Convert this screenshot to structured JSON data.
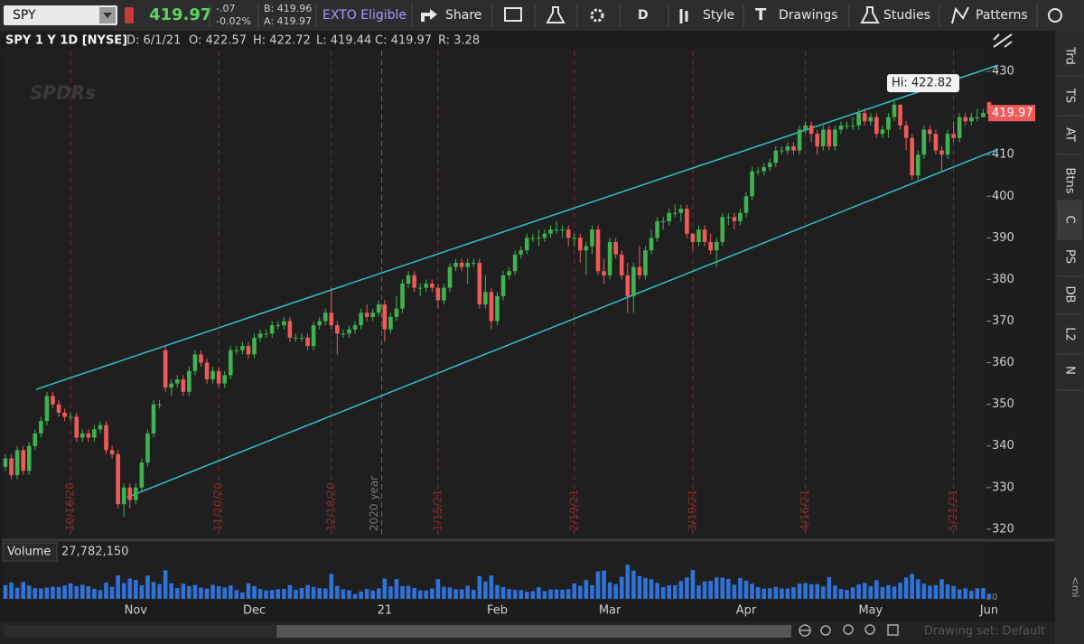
{
  "toolbar": {
    "symbol": "SPY",
    "last": "419.97",
    "change": "-.07",
    "change_pct": "-0.02%",
    "bid": "B: 419.96",
    "ask": "A: 419.97",
    "exto": "EXTO Eligible",
    "share": "Share",
    "aggregation": "D",
    "style": "Style",
    "drawings": "Drawings",
    "studies": "Studies",
    "patterns": "Patterns"
  },
  "info": {
    "title": "SPY 1 Y 1D [NYSE]",
    "date": "D: 6/1/21",
    "open": "O: 422.57",
    "high": "H: 422.72",
    "low": "L: 419.44",
    "close": "C: 419.97",
    "range": "R: 3.28"
  },
  "sidebar": [
    "Trd",
    "TS",
    "AT",
    "Btns",
    "C",
    "PS",
    "DB",
    "L2",
    "N"
  ],
  "footer": {
    "drawing_set": "Drawing set: Default",
    "collapsed": "<mi"
  },
  "chart_data": {
    "type": "candlestick",
    "watermark": "SPDRs",
    "up_color": "#3fb34f",
    "down_color": "#f05a5a",
    "open": [
      335,
      337,
      333,
      339,
      334,
      340,
      343,
      346,
      352,
      350,
      348,
      347,
      347,
      342,
      343,
      342,
      344,
      345,
      339,
      338,
      326,
      330,
      327,
      330,
      336,
      343,
      350,
      363,
      354,
      355,
      356,
      353,
      358,
      362,
      360,
      356,
      358,
      355,
      357,
      363,
      363,
      364,
      362,
      366,
      367,
      367,
      369,
      369,
      370,
      366,
      366,
      366,
      364,
      369,
      370,
      372,
      369,
      367,
      367,
      368,
      369,
      372,
      371,
      372,
      374,
      368,
      371,
      373,
      379,
      381,
      378,
      378,
      379,
      378,
      375,
      378,
      383,
      384,
      383,
      384,
      384,
      374,
      377,
      370,
      376,
      381,
      382,
      386,
      387,
      390,
      390,
      390,
      391,
      392,
      392,
      392,
      390,
      390,
      387,
      388,
      392,
      382,
      381,
      389,
      386,
      381,
      376,
      383,
      381,
      387,
      390,
      394,
      394,
      396,
      396,
      397,
      391,
      389,
      392,
      389,
      387,
      389,
      395,
      395,
      394,
      396,
      400,
      406,
      406,
      407,
      408,
      411,
      411,
      412,
      411,
      416,
      417,
      415,
      412,
      416,
      412,
      416,
      417,
      417,
      417,
      420,
      418,
      419,
      415,
      416,
      419,
      422,
      417,
      414,
      405,
      410,
      416,
      415,
      411,
      410,
      415,
      414,
      419,
      418,
      419,
      419,
      422.57
    ],
    "high": [
      338,
      338,
      340,
      340,
      341,
      344,
      347,
      353,
      353,
      351,
      349,
      348,
      348,
      344,
      344,
      345,
      346,
      346,
      340,
      339,
      331,
      331,
      331,
      337,
      344,
      351,
      351,
      364,
      356,
      357,
      357,
      359,
      363,
      363,
      361,
      359,
      359,
      358,
      364,
      364,
      365,
      365,
      367,
      368,
      368,
      370,
      370,
      371,
      371,
      367,
      367,
      367,
      370,
      371,
      373,
      378,
      370,
      368,
      369,
      370,
      373,
      374,
      373,
      375,
      375,
      372,
      376,
      380,
      382,
      382,
      379,
      380,
      380,
      379,
      379,
      384,
      385,
      385,
      385,
      385,
      385,
      381,
      378,
      377,
      382,
      383,
      387,
      388,
      391,
      391,
      392,
      392,
      393,
      394,
      393,
      393,
      391,
      391,
      389,
      393,
      393,
      385,
      390,
      390,
      387,
      384,
      384,
      388,
      388,
      392,
      395,
      395,
      397,
      398,
      398,
      398,
      391,
      393,
      393,
      391,
      390,
      396,
      396,
      396,
      397,
      401,
      407,
      407,
      408,
      409,
      412,
      412,
      413,
      413,
      417,
      418,
      418,
      416,
      417,
      417,
      417,
      418,
      418,
      419,
      421,
      421,
      420,
      420,
      417,
      420,
      422.82,
      422,
      418,
      415,
      411,
      417,
      417,
      416,
      412,
      416,
      418,
      420,
      420,
      420,
      421,
      421,
      422.72
    ],
    "low": [
      334,
      332,
      332,
      333,
      333,
      339,
      342,
      345,
      349,
      347,
      346,
      346,
      341,
      341,
      341,
      341,
      343,
      338,
      337,
      325,
      323,
      325,
      326,
      329,
      335,
      342,
      349,
      353,
      352,
      354,
      352,
      352,
      357,
      359,
      355,
      355,
      354,
      354,
      356,
      362,
      362,
      361,
      361,
      365,
      366,
      366,
      368,
      368,
      365,
      365,
      365,
      363,
      363,
      368,
      369,
      368,
      362,
      366,
      366,
      367,
      368,
      370,
      370,
      371,
      365,
      367,
      370,
      372,
      378,
      377,
      376,
      377,
      377,
      373,
      374,
      377,
      382,
      382,
      379,
      383,
      373,
      373,
      368,
      369,
      375,
      380,
      381,
      385,
      386,
      389,
      388,
      389,
      390,
      391,
      390,
      388,
      388,
      384,
      381,
      386,
      381,
      379,
      380,
      385,
      380,
      372,
      372,
      380,
      380,
      386,
      389,
      392,
      393,
      395,
      394,
      390,
      387,
      388,
      388,
      386,
      383,
      388,
      393,
      392,
      393,
      395,
      399,
      405,
      405,
      406,
      407,
      410,
      410,
      410,
      410,
      415,
      413,
      410,
      411,
      411,
      411,
      415,
      416,
      416,
      416,
      417,
      417,
      414,
      414,
      414,
      418,
      416,
      411,
      404,
      404,
      409,
      413,
      410,
      406,
      409,
      413,
      413,
      417,
      417,
      418,
      419,
      419.44
    ],
    "close": [
      337,
      333,
      339,
      334,
      340,
      343,
      346,
      352,
      350,
      348,
      347,
      347,
      342,
      343,
      342,
      344,
      345,
      339,
      338,
      326,
      330,
      327,
      330,
      336,
      343,
      350,
      350,
      354,
      355,
      356,
      353,
      358,
      362,
      360,
      356,
      358,
      355,
      357,
      363,
      363,
      364,
      362,
      366,
      367,
      367,
      369,
      369,
      370,
      366,
      366,
      366,
      364,
      369,
      370,
      372,
      369,
      367,
      367,
      368,
      369,
      372,
      371,
      372,
      374,
      368,
      371,
      373,
      379,
      381,
      378,
      378,
      379,
      378,
      375,
      378,
      383,
      384,
      383,
      384,
      384,
      374,
      377,
      370,
      376,
      381,
      382,
      386,
      387,
      390,
      390,
      390,
      391,
      392,
      392,
      392,
      390,
      390,
      387,
      388,
      392,
      382,
      381,
      389,
      386,
      381,
      376,
      383,
      381,
      387,
      390,
      394,
      394,
      396,
      396,
      397,
      391,
      389,
      392,
      389,
      387,
      389,
      395,
      395,
      394,
      396,
      400,
      406,
      406,
      407,
      408,
      411,
      411,
      412,
      411,
      416,
      417,
      415,
      412,
      416,
      412,
      416,
      417,
      417,
      417,
      420,
      418,
      419,
      415,
      416,
      419,
      422,
      417,
      414,
      405,
      410,
      416,
      415,
      411,
      410,
      415,
      414,
      419,
      418,
      419,
      419,
      420,
      419.97
    ],
    "ylim": [
      317.8,
      435
    ],
    "yticks": [
      320,
      330,
      340,
      350,
      360,
      370,
      380,
      390,
      400,
      410,
      420,
      430
    ],
    "last_price_label": "419.97",
    "high_annotation": "Hi: 422.82",
    "date_markers": [
      "10/16/20",
      "11/20/20",
      "12/18/20",
      "1/15/21",
      "2/19/21",
      "3/19/21",
      "4/16/21",
      "5/21/21"
    ],
    "year_marker": "2020 year",
    "month_labels": [
      "Nov",
      "Dec",
      "21",
      "Feb",
      "Mar",
      "Apr",
      "May",
      "Jun"
    ],
    "trendlines": [
      {
        "color": "#2fc3c9",
        "start": [
          5.2,
          353.6
        ],
        "end": [
          167.5,
          431.5
        ]
      },
      {
        "color": "#2fc3c9",
        "start": [
          20.5,
          327.6
        ],
        "end": [
          167.5,
          411.3
        ]
      }
    ],
    "volume": {
      "title": "Volume",
      "last_label": "27,782,150",
      "color": "#2f72d8",
      "ylim": [
        0,
        200000000
      ],
      "yticks": [
        0
      ],
      "values": [
        74000000,
        89000000,
        60000000,
        92000000,
        72000000,
        58000000,
        56000000,
        61000000,
        65000000,
        65000000,
        72000000,
        84000000,
        68000000,
        76000000,
        68000000,
        54000000,
        48000000,
        88000000,
        65000000,
        127000000,
        86000000,
        110000000,
        102000000,
        73000000,
        126000000,
        91000000,
        80000000,
        154000000,
        84000000,
        58000000,
        82000000,
        69000000,
        75000000,
        61000000,
        55000000,
        76000000,
        69000000,
        62000000,
        72000000,
        47000000,
        34000000,
        84000000,
        69000000,
        53000000,
        46000000,
        48000000,
        52000000,
        53000000,
        74000000,
        49000000,
        58000000,
        75000000,
        64000000,
        58000000,
        56000000,
        135000000,
        70000000,
        51000000,
        46000000,
        26000000,
        40000000,
        53000000,
        45000000,
        57000000,
        110000000,
        67000000,
        107000000,
        69000000,
        71000000,
        59000000,
        46000000,
        45000000,
        56000000,
        107000000,
        65000000,
        61000000,
        52000000,
        52000000,
        71000000,
        49000000,
        123000000,
        94000000,
        126000000,
        75000000,
        64000000,
        52000000,
        48000000,
        48000000,
        38000000,
        41000000,
        63000000,
        42000000,
        50000000,
        50000000,
        49000000,
        53000000,
        83000000,
        71000000,
        101000000,
        74000000,
        148000000,
        153000000,
        89000000,
        79000000,
        119000000,
        184000000,
        153000000,
        123000000,
        113000000,
        107000000,
        86000000,
        64000000,
        73000000,
        73000000,
        97000000,
        116000000,
        156000000,
        73000000,
        94000000,
        97000000,
        116000000,
        114000000,
        108000000,
        76000000,
        112000000,
        99000000,
        82000000,
        63000000,
        55000000,
        57000000,
        64000000,
        56000000,
        56000000,
        63000000,
        82000000,
        85000000,
        79000000,
        80000000,
        67000000,
        118000000,
        72000000,
        53000000,
        48000000,
        61000000,
        78000000,
        86000000,
        69000000,
        101000000,
        63000000,
        74000000,
        67000000,
        88000000,
        116000000,
        135000000,
        106000000,
        82000000,
        71000000,
        74000000,
        106000000,
        78000000,
        70000000,
        51000000,
        57000000,
        43000000,
        57000000,
        58000000,
        27782150
      ]
    }
  }
}
